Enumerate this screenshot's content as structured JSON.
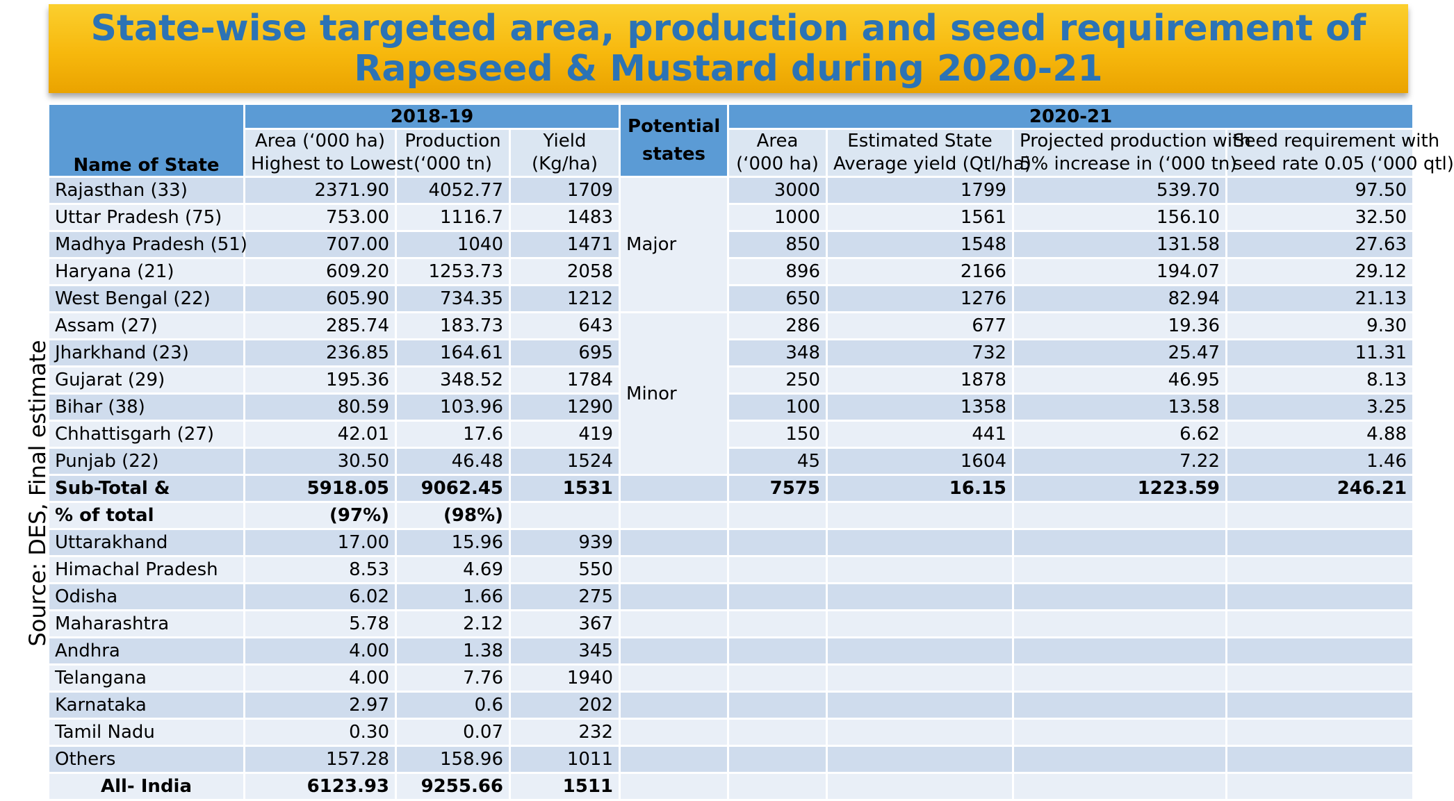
{
  "title": "State-wise targeted area, production and seed requirement  of Rapeseed & Mustard during 2020-21",
  "source_note": "Source: DES, Final estimate",
  "header": {
    "name_of_state": "Name of State",
    "period1": "2018-19",
    "potential_states": "Potential states",
    "period2": "2020-21",
    "area1_line1": "Area (‘000 ha)",
    "area1_line2": "Highest to Lowest",
    "prod1_line1": "Production",
    "prod1_line2": "(‘000 tn)",
    "yield1_line1": "Yield",
    "yield1_line2": "(Kg/ha)",
    "area2_line1": "Area",
    "area2_line2": "(‘000 ha)",
    "estyield_line1": "Estimated State",
    "estyield_line2": "Average yield (Qtl/ha)",
    "projprod_line1": "Projected production with",
    "projprod_line2": "5% increase in (‘000 tn)",
    "seed_line1": "Seed requirement with",
    "seed_line2": "seed rate 0.05 (‘000 qtl)"
  },
  "groups": {
    "major": "Major",
    "minor": "Minor"
  },
  "rows": [
    {
      "state": "Rajasthan (33)",
      "area": "2371.90",
      "prod": "4052.77",
      "yield": "1709",
      "area2": "3000",
      "estyield": "1799",
      "projprod": "539.70",
      "seed": "97.50"
    },
    {
      "state": "Uttar Pradesh (75)",
      "area": "753.00",
      "prod": "1116.7",
      "yield": "1483",
      "area2": "1000",
      "estyield": "1561",
      "projprod": "156.10",
      "seed": "32.50"
    },
    {
      "state": "Madhya Pradesh (51)",
      "area": "707.00",
      "prod": "1040",
      "yield": "1471",
      "area2": "850",
      "estyield": "1548",
      "projprod": "131.58",
      "seed": "27.63"
    },
    {
      "state": "Haryana (21)",
      "area": "609.20",
      "prod": "1253.73",
      "yield": "2058",
      "area2": "896",
      "estyield": "2166",
      "projprod": "194.07",
      "seed": "29.12"
    },
    {
      "state": "West Bengal (22)",
      "area": "605.90",
      "prod": "734.35",
      "yield": "1212",
      "area2": "650",
      "estyield": "1276",
      "projprod": "82.94",
      "seed": "21.13"
    },
    {
      "state": "Assam (27)",
      "area": "285.74",
      "prod": "183.73",
      "yield": "643",
      "area2": "286",
      "estyield": "677",
      "projprod": "19.36",
      "seed": "9.30"
    },
    {
      "state": "Jharkhand (23)",
      "area": "236.85",
      "prod": "164.61",
      "yield": "695",
      "area2": "348",
      "estyield": "732",
      "projprod": "25.47",
      "seed": "11.31"
    },
    {
      "state": "Gujarat (29)",
      "area": "195.36",
      "prod": "348.52",
      "yield": "1784",
      "area2": "250",
      "estyield": "1878",
      "projprod": "46.95",
      "seed": "8.13"
    },
    {
      "state": "Bihar (38)",
      "area": "80.59",
      "prod": "103.96",
      "yield": "1290",
      "area2": "100",
      "estyield": "1358",
      "projprod": "13.58",
      "seed": "3.25"
    },
    {
      "state": "Chhattisgarh (27)",
      "area": "42.01",
      "prod": "17.6",
      "yield": "419",
      "area2": "150",
      "estyield": "441",
      "projprod": "6.62",
      "seed": "4.88"
    },
    {
      "state": "Punjab (22)",
      "area": "30.50",
      "prod": "46.48",
      "yield": "1524",
      "area2": "45",
      "estyield": "1604",
      "projprod": "7.22",
      "seed": "1.46"
    }
  ],
  "subtotal": {
    "state": "Sub-Total &",
    "area": "5918.05",
    "prod": "9062.45",
    "yield": "1531",
    "area2": "7575",
    "estyield": "16.15",
    "projprod": "1223.59",
    "seed": "246.21"
  },
  "percent": {
    "state": "% of total",
    "area": "(97%)",
    "prod": "(98%)"
  },
  "other_rows": [
    {
      "state": "Uttarakhand",
      "area": "17.00",
      "prod": "15.96",
      "yield": "939"
    },
    {
      "state": "Himachal Pradesh",
      "area": "8.53",
      "prod": "4.69",
      "yield": "550"
    },
    {
      "state": "Odisha",
      "area": "6.02",
      "prod": "1.66",
      "yield": "275"
    },
    {
      "state": "Maharashtra",
      "area": "5.78",
      "prod": "2.12",
      "yield": "367"
    },
    {
      "state": "Andhra",
      "area": "4.00",
      "prod": "1.38",
      "yield": "345"
    },
    {
      "state": "Telangana",
      "area": "4.00",
      "prod": "7.76",
      "yield": "1940"
    },
    {
      "state": "Karnataka",
      "area": "2.97",
      "prod": "0.6",
      "yield": "202"
    },
    {
      "state": "Tamil Nadu",
      "area": "0.30",
      "prod": "0.07",
      "yield": "232"
    },
    {
      "state": "Others",
      "area": "157.28",
      "prod": "158.96",
      "yield": "1011"
    }
  ],
  "all_india": {
    "state": "All- India",
    "area": "6123.93",
    "prod": "9255.66",
    "yield": "1511"
  }
}
